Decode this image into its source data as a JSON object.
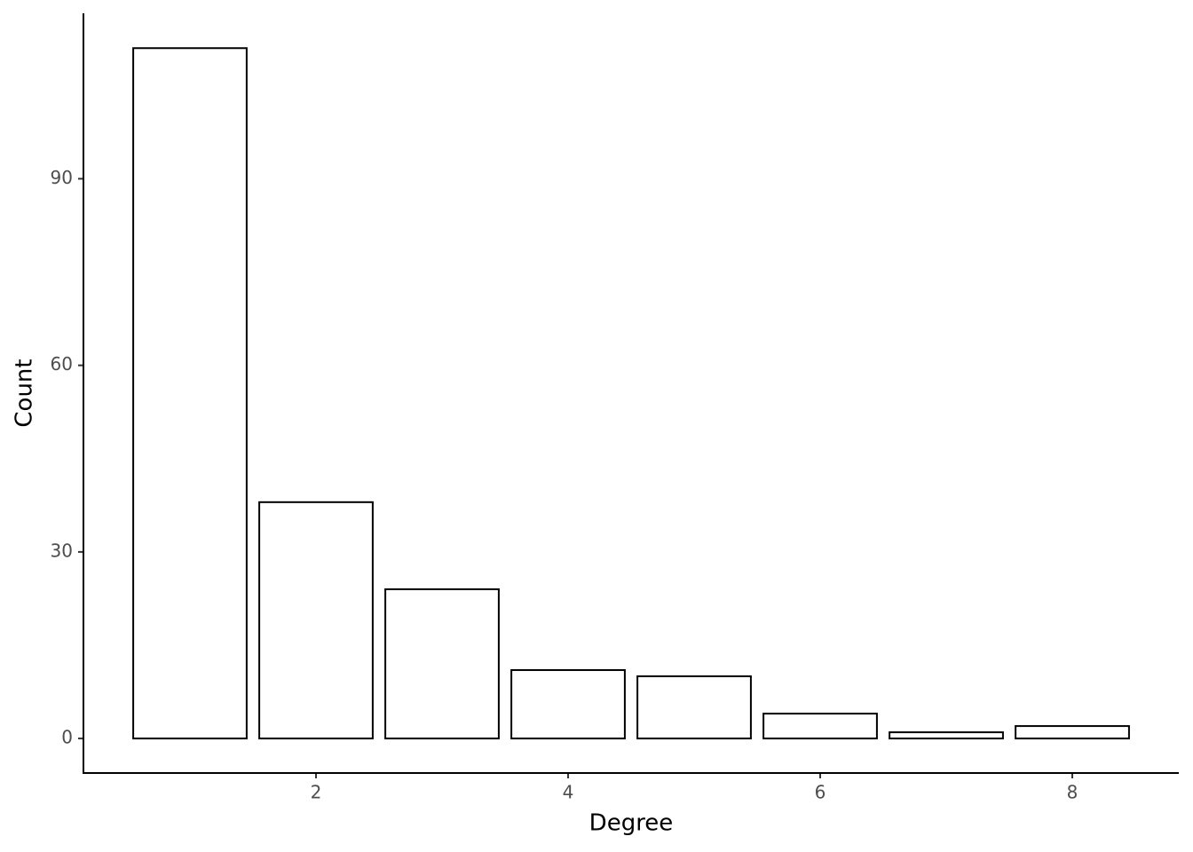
{
  "chart_data": {
    "type": "bar",
    "x_label": "Degree",
    "y_label": "Count",
    "x": [
      1,
      2,
      3,
      4,
      5,
      6,
      7,
      8
    ],
    "values": [
      111,
      38,
      24,
      11,
      10,
      4,
      1,
      2
    ],
    "color": "#ffffff",
    "edge_color": "#000000",
    "xlim": [
      0.155,
      8.845
    ],
    "xticks": [
      2,
      4,
      6,
      8
    ],
    "ylim": [
      -5.55,
      116.6
    ],
    "yticks": [
      0,
      30,
      60,
      90
    ],
    "grid": false
  }
}
